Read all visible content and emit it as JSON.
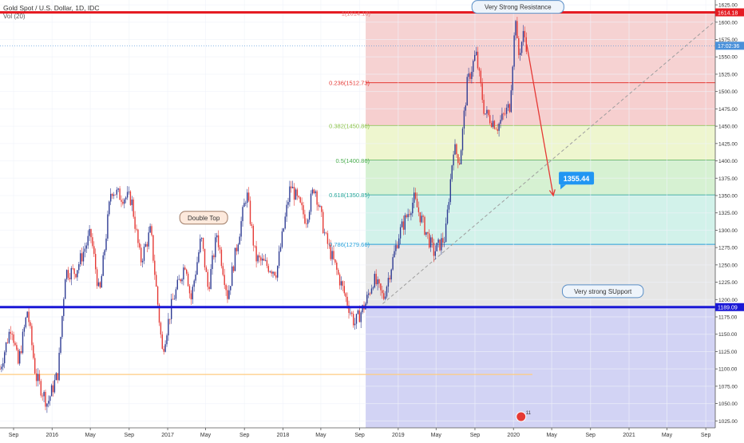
{
  "header": {
    "title": "Gold Spot / U.S. Dollar, 1D, IDC",
    "volume_label": "Vol (20)"
  },
  "chart_data": {
    "type": "candlestick",
    "ylim": [
      1015,
      1632
    ],
    "y_ticks": [
      1025,
      1050,
      1075,
      1100,
      1125,
      1150,
      1175,
      1200,
      1225,
      1250,
      1275,
      1300,
      1325,
      1350,
      1375,
      1400,
      1425,
      1450,
      1475,
      1500,
      1525,
      1550,
      1575,
      1600,
      1625
    ],
    "x_range": [
      "2015-07-20",
      "2021-10-01"
    ],
    "x_ticks": [
      {
        "label": "Sep",
        "date": "2015-09-01"
      },
      {
        "label": "2016",
        "date": "2016-01-01"
      },
      {
        "label": "May",
        "date": "2016-05-01"
      },
      {
        "label": "Sep",
        "date": "2016-09-01"
      },
      {
        "label": "2017",
        "date": "2017-01-01"
      },
      {
        "label": "May",
        "date": "2017-05-01"
      },
      {
        "label": "Sep",
        "date": "2017-09-01"
      },
      {
        "label": "2018",
        "date": "2018-01-01"
      },
      {
        "label": "May",
        "date": "2018-05-01"
      },
      {
        "label": "Sep",
        "date": "2018-09-01"
      },
      {
        "label": "2019",
        "date": "2019-01-01"
      },
      {
        "label": "May",
        "date": "2019-05-01"
      },
      {
        "label": "Sep",
        "date": "2019-09-01"
      },
      {
        "label": "2020",
        "date": "2020-01-01"
      },
      {
        "label": "May",
        "date": "2020-05-01"
      },
      {
        "label": "Sep",
        "date": "2020-09-01"
      },
      {
        "label": "2021",
        "date": "2021-01-01"
      },
      {
        "label": "May",
        "date": "2021-05-01"
      },
      {
        "label": "Sep",
        "date": "2021-09-01"
      }
    ],
    "price_path": [
      [
        "2015-07-20",
        1100
      ],
      [
        "2015-08-25",
        1165
      ],
      [
        "2015-09-15",
        1105
      ],
      [
        "2015-10-15",
        1185
      ],
      [
        "2015-11-10",
        1090
      ],
      [
        "2015-12-17",
        1050
      ],
      [
        "2016-01-20",
        1095
      ],
      [
        "2016-02-12",
        1240
      ],
      [
        "2016-03-15",
        1240
      ],
      [
        "2016-05-02",
        1295
      ],
      [
        "2016-05-30",
        1205
      ],
      [
        "2016-07-06",
        1360
      ],
      [
        "2016-08-01",
        1350
      ],
      [
        "2016-09-08",
        1345
      ],
      [
        "2016-10-07",
        1255
      ],
      [
        "2016-11-08",
        1300
      ],
      [
        "2016-12-15",
        1125
      ],
      [
        "2017-01-15",
        1195
      ],
      [
        "2017-02-27",
        1255
      ],
      [
        "2017-03-15",
        1198
      ],
      [
        "2017-04-17",
        1290
      ],
      [
        "2017-05-09",
        1215
      ],
      [
        "2017-06-06",
        1295
      ],
      [
        "2017-07-10",
        1205
      ],
      [
        "2017-09-08",
        1355
      ],
      [
        "2017-10-06",
        1260
      ],
      [
        "2017-12-12",
        1240
      ],
      [
        "2018-01-25",
        1365
      ],
      [
        "2018-03-15",
        1315
      ],
      [
        "2018-04-11",
        1365
      ],
      [
        "2018-05-15",
        1290
      ],
      [
        "2018-08-16",
        1165
      ],
      [
        "2018-09-20",
        1195
      ],
      [
        "2018-10-15",
        1230
      ],
      [
        "2018-11-15",
        1202
      ],
      [
        "2019-01-04",
        1295
      ],
      [
        "2019-02-20",
        1345
      ],
      [
        "2019-04-23",
        1268
      ],
      [
        "2019-05-30",
        1290
      ],
      [
        "2019-06-25",
        1420
      ],
      [
        "2019-07-15",
        1400
      ],
      [
        "2019-08-07",
        1510
      ],
      [
        "2019-09-04",
        1555
      ],
      [
        "2019-10-01",
        1470
      ],
      [
        "2019-11-12",
        1450
      ],
      [
        "2019-12-20",
        1480
      ],
      [
        "2020-01-08",
        1610
      ],
      [
        "2020-01-15",
        1548
      ],
      [
        "2020-02-03",
        1585
      ],
      [
        "2020-02-12",
        1565
      ]
    ],
    "fib_levels": [
      {
        "ratio": "0.236",
        "price": 1512.73,
        "label": "0.236(1512.73)",
        "color": "#e53935",
        "fill": "#f6cfcf"
      },
      {
        "ratio": "0.382",
        "price": 1450.86,
        "label": "0.382(1450.86)",
        "color": "#8bc34a",
        "fill": "#eef6cf"
      },
      {
        "ratio": "0.5",
        "price": 1400.86,
        "label": "0.5(1400.86)",
        "color": "#4caf50",
        "fill": "#d6f1d2"
      },
      {
        "ratio": "0.618",
        "price": 1350.85,
        "label": "0.618(1350.85)",
        "color": "#26a69a",
        "fill": "#d2f2ea"
      },
      {
        "ratio": "0.786",
        "price": 1279.66,
        "label": "0.786(1279.66)",
        "color": "#26a0da",
        "fill": "#d3e9f7"
      }
    ],
    "fib_top_label": "1(1614.18)",
    "fib_top_fill": "#f6d2d2",
    "fib_band_786_to_1": "#e6e6e6",
    "fib_bottom_fill": "#d2d3f4",
    "fib_start_date": "2018-09-20",
    "fib_bottom_price": 1189.09,
    "resistance": {
      "price": 1614.18,
      "label": "1614.18",
      "color": "#e51c23"
    },
    "support": {
      "price": 1189.09,
      "label": "1189.09",
      "color": "#1a18d6"
    },
    "current_price": {
      "price": 1566,
      "label": "17:02:36",
      "color": "#4a90d9"
    },
    "target": {
      "price": 1355.44,
      "label": "1355.44",
      "color": "#2196f3"
    },
    "arrow": {
      "from_date": "2020-02-12",
      "from_price": 1568,
      "to_date": "2020-05-06",
      "to_price": 1350,
      "color": "#e53935"
    },
    "trendline": {
      "from_date": "2018-11-13",
      "from_price": 1194,
      "to_date": "2021-10-01",
      "to_price": 1602,
      "color": "#9e9e9e"
    },
    "orange_line": {
      "price": 1092,
      "from_date": "2015-07-20",
      "to_date": "2020-03-01",
      "color": "#ffcc80"
    },
    "annotations": [
      {
        "text": "Very Strong Resistance",
        "date": "2020-01-15",
        "price": 1622
      },
      {
        "text": "Double Top",
        "date": "2017-04-25",
        "price": 1318
      },
      {
        "text": "Very strong SUpport",
        "date": "2020-10-10",
        "price": 1212
      }
    ],
    "bull_color": "#2e3b93",
    "bear_color": "#e53935",
    "event_badge": "11"
  }
}
